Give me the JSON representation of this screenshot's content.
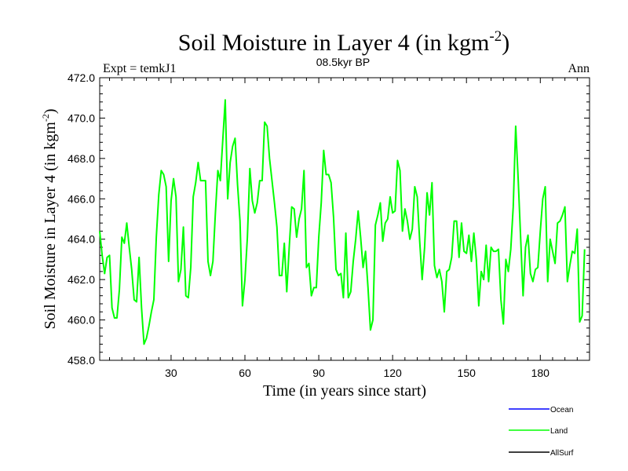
{
  "header": {
    "title_main": "Soil Moisture in Layer 4 (in kgm",
    "title_exp": "-2",
    "title_close": ")",
    "subtitle": "08.5kyr BP",
    "left_label": "Expt = temkJ1",
    "right_label": "Ann"
  },
  "legend": {
    "items": [
      {
        "label": "Ocean",
        "color": "#0000ff"
      },
      {
        "label": "Land",
        "color": "#00ff00"
      },
      {
        "label": "AllSurf",
        "color": "#000000"
      }
    ]
  },
  "chart_data": {
    "type": "line",
    "title": "Soil Moisture in Layer 4 (in kgm-2)",
    "subtitle": "08.5kyr BP",
    "xlabel": "Time (in years since start)",
    "ylabel_main": "Soil Moisture in Layer 4 (in kgm",
    "ylabel_exp": "-2",
    "ylabel_close": ")",
    "xlim": [
      1,
      200
    ],
    "ylim": [
      458,
      472
    ],
    "xticks": [
      30,
      60,
      90,
      120,
      150,
      180
    ],
    "yticks": [
      458,
      460,
      462,
      464,
      466,
      468,
      470,
      472
    ],
    "ytick_labels": [
      "458.0",
      "460.0",
      "462.0",
      "464.0",
      "466.0",
      "468.0",
      "470.0",
      "472.0"
    ],
    "series": [
      {
        "name": "Land",
        "color": "#00ff00",
        "x_start": 1,
        "x_step": 1,
        "values": [
          464.4,
          463.2,
          462.3,
          463.1,
          463.2,
          460.6,
          460.1,
          460.1,
          461.5,
          464.1,
          463.8,
          464.8,
          463.6,
          462.5,
          461.0,
          460.9,
          463.1,
          460.6,
          458.8,
          459.1,
          459.7,
          460.4,
          461.0,
          464.1,
          466.2,
          467.4,
          467.2,
          466.6,
          462.9,
          465.9,
          467.0,
          466.1,
          461.9,
          462.5,
          464.6,
          461.2,
          461.1,
          462.6,
          466.1,
          466.8,
          467.8,
          466.9,
          466.9,
          466.9,
          462.9,
          462.2,
          462.9,
          465.3,
          467.4,
          466.9,
          468.9,
          470.9,
          466.0,
          467.8,
          468.6,
          469.0,
          466.7,
          464.9,
          460.7,
          462.0,
          464.1,
          467.5,
          465.9,
          465.3,
          465.8,
          466.9,
          466.9,
          469.8,
          469.6,
          468.0,
          466.9,
          465.8,
          464.6,
          462.2,
          462.2,
          463.8,
          461.4,
          463.6,
          465.6,
          465.5,
          464.1,
          465.0,
          465.5,
          467.4,
          462.6,
          462.8,
          461.2,
          461.6,
          461.6,
          464.1,
          465.8,
          468.4,
          467.2,
          467.2,
          466.8,
          465.1,
          462.5,
          462.2,
          462.3,
          461.1,
          464.3,
          461.1,
          461.4,
          462.9,
          464.0,
          465.4,
          464.1,
          462.6,
          463.4,
          461.6,
          459.5,
          460.0,
          464.7,
          465.2,
          465.8,
          463.9,
          464.8,
          465.0,
          466.1,
          465.3,
          465.4,
          467.9,
          467.4,
          464.4,
          465.5,
          464.9,
          464.0,
          464.5,
          466.6,
          466.1,
          463.9,
          462.0,
          463.6,
          466.3,
          465.2,
          466.8,
          462.7,
          462.1,
          462.5,
          461.9,
          460.4,
          462.4,
          462.5,
          463.1,
          464.9,
          464.9,
          463.1,
          464.8,
          463.4,
          463.3,
          464.2,
          462.9,
          464.3,
          463.0,
          460.7,
          462.4,
          462.0,
          463.7,
          461.9,
          463.6,
          463.4,
          463.4,
          463.5,
          461.0,
          459.8,
          463.0,
          462.4,
          463.5,
          465.6,
          469.6,
          467.0,
          464.1,
          461.2,
          463.6,
          464.2,
          462.3,
          461.9,
          462.5,
          462.6,
          464.4,
          466.0,
          466.6,
          461.9,
          464.0,
          463.4,
          462.8,
          464.8,
          464.9,
          465.2,
          465.6,
          461.9,
          462.7,
          463.4,
          463.3,
          464.5,
          459.9,
          460.2,
          463.5
        ]
      },
      {
        "name": "Ocean",
        "color": "#0000ff",
        "values": []
      },
      {
        "name": "AllSurf",
        "color": "#000000",
        "values": []
      }
    ]
  }
}
